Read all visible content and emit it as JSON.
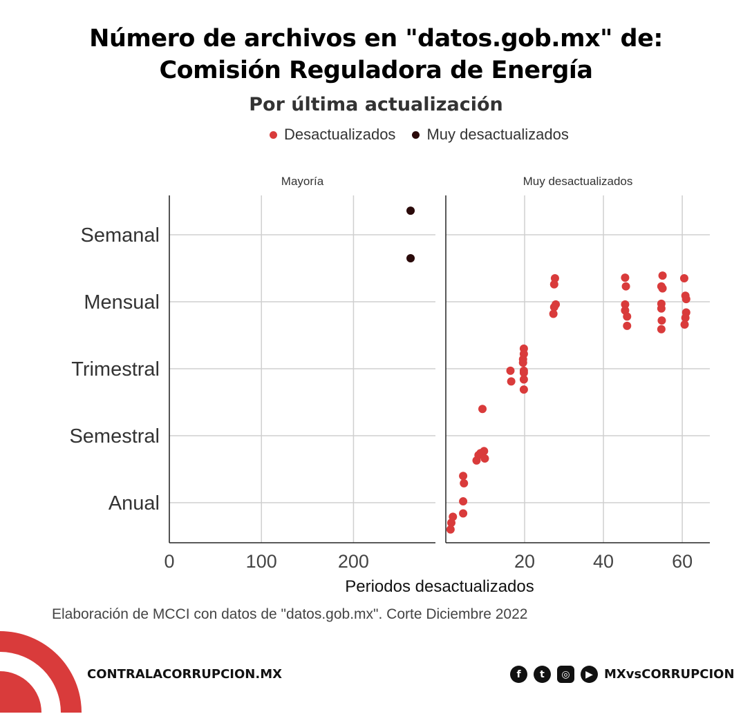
{
  "chart_data": {
    "type": "scatter",
    "title": [
      "Número de archivos en \"datos.gob.mx\" de:",
      "Comisión Reguladora de Energía"
    ],
    "subtitle": "Por última actualización",
    "xlabel": "Periodos desactualizados",
    "ylabel": "",
    "legend": {
      "placement": "top",
      "entries": [
        {
          "name": "Desactualizados",
          "color": "#d93b3b"
        },
        {
          "name": "Muy desactualizados",
          "color": "#2a0a0a"
        }
      ]
    },
    "y_categories": [
      "Anual",
      "Semestral",
      "Trimestral",
      "Mensual",
      "Semanal"
    ],
    "grid": true,
    "panels": [
      {
        "title": "Mayoría",
        "xlim": [
          0,
          289
        ],
        "xticks": [
          0,
          100,
          200
        ],
        "points": [
          {
            "x": 262,
            "y": 5.36,
            "series": "Muy desactualizados"
          },
          {
            "x": 262,
            "y": 4.65,
            "series": "Muy desactualizados"
          }
        ]
      },
      {
        "title": "Muy desactualizados",
        "xlim": [
          0,
          67
        ],
        "xticks": [
          20,
          40,
          60
        ],
        "points": [
          {
            "x": 27.7,
            "y": 4.35,
            "series": "Desactualizados"
          },
          {
            "x": 27.5,
            "y": 4.26,
            "series": "Desactualizados"
          },
          {
            "x": 27.9,
            "y": 3.96,
            "series": "Desactualizados"
          },
          {
            "x": 27.5,
            "y": 3.92,
            "series": "Desactualizados"
          },
          {
            "x": 27.3,
            "y": 3.82,
            "series": "Desactualizados"
          },
          {
            "x": 45.5,
            "y": 4.36,
            "series": "Desactualizados"
          },
          {
            "x": 45.7,
            "y": 4.23,
            "series": "Desactualizados"
          },
          {
            "x": 45.5,
            "y": 3.96,
            "series": "Desactualizados"
          },
          {
            "x": 45.5,
            "y": 3.87,
            "series": "Desactualizados"
          },
          {
            "x": 46.0,
            "y": 3.78,
            "series": "Desactualizados"
          },
          {
            "x": 46.0,
            "y": 3.64,
            "series": "Desactualizados"
          },
          {
            "x": 55.0,
            "y": 4.39,
            "series": "Desactualizados"
          },
          {
            "x": 54.7,
            "y": 4.23,
            "series": "Desactualizados"
          },
          {
            "x": 55.0,
            "y": 4.2,
            "series": "Desactualizados"
          },
          {
            "x": 54.7,
            "y": 3.97,
            "series": "Desactualizados"
          },
          {
            "x": 54.7,
            "y": 3.9,
            "series": "Desactualizados"
          },
          {
            "x": 54.8,
            "y": 3.72,
            "series": "Desactualizados"
          },
          {
            "x": 54.7,
            "y": 3.59,
            "series": "Desactualizados"
          },
          {
            "x": 60.5,
            "y": 4.35,
            "series": "Desactualizados"
          },
          {
            "x": 60.8,
            "y": 4.09,
            "series": "Desactualizados"
          },
          {
            "x": 61.0,
            "y": 4.04,
            "series": "Desactualizados"
          },
          {
            "x": 61.0,
            "y": 3.84,
            "series": "Desactualizados"
          },
          {
            "x": 60.8,
            "y": 3.76,
            "series": "Desactualizados"
          },
          {
            "x": 60.6,
            "y": 3.66,
            "series": "Desactualizados"
          },
          {
            "x": 19.8,
            "y": 3.3,
            "series": "Desactualizados"
          },
          {
            "x": 19.8,
            "y": 3.22,
            "series": "Desactualizados"
          },
          {
            "x": 19.6,
            "y": 3.14,
            "series": "Desactualizados"
          },
          {
            "x": 19.6,
            "y": 3.09,
            "series": "Desactualizados"
          },
          {
            "x": 19.8,
            "y": 2.97,
            "series": "Desactualizados"
          },
          {
            "x": 19.8,
            "y": 2.94,
            "series": "Desactualizados"
          },
          {
            "x": 16.4,
            "y": 2.97,
            "series": "Desactualizados"
          },
          {
            "x": 16.6,
            "y": 2.81,
            "series": "Desactualizados"
          },
          {
            "x": 19.8,
            "y": 2.84,
            "series": "Desactualizados"
          },
          {
            "x": 19.8,
            "y": 2.69,
            "series": "Desactualizados"
          },
          {
            "x": 9.3,
            "y": 2.4,
            "series": "Desactualizados"
          },
          {
            "x": 9.7,
            "y": 1.77,
            "series": "Desactualizados"
          },
          {
            "x": 8.8,
            "y": 1.74,
            "series": "Desactualizados"
          },
          {
            "x": 8.3,
            "y": 1.71,
            "series": "Desactualizados"
          },
          {
            "x": 7.8,
            "y": 1.63,
            "series": "Desactualizados"
          },
          {
            "x": 9.9,
            "y": 1.66,
            "series": "Desactualizados"
          },
          {
            "x": 4.4,
            "y": 1.4,
            "series": "Desactualizados"
          },
          {
            "x": 4.6,
            "y": 1.29,
            "series": "Desactualizados"
          },
          {
            "x": 4.4,
            "y": 1.02,
            "series": "Desactualizados"
          },
          {
            "x": 4.4,
            "y": 0.84,
            "series": "Desactualizados"
          },
          {
            "x": 1.8,
            "y": 0.79,
            "series": "Desactualizados"
          },
          {
            "x": 1.4,
            "y": 0.7,
            "series": "Desactualizados"
          },
          {
            "x": 1.2,
            "y": 0.6,
            "series": "Desactualizados"
          }
        ]
      }
    ]
  },
  "caption": "Elaboración de MCCI con datos de \"datos.gob.mx\". Corte Diciembre 2022",
  "footer": {
    "site": "CONTRALACORRUPCION.MX",
    "handle": "MXvsCORRUPCION",
    "icons": [
      "facebook-icon",
      "twitter-icon",
      "instagram-icon",
      "youtube-icon"
    ],
    "brand_color": "#d93b3b"
  }
}
